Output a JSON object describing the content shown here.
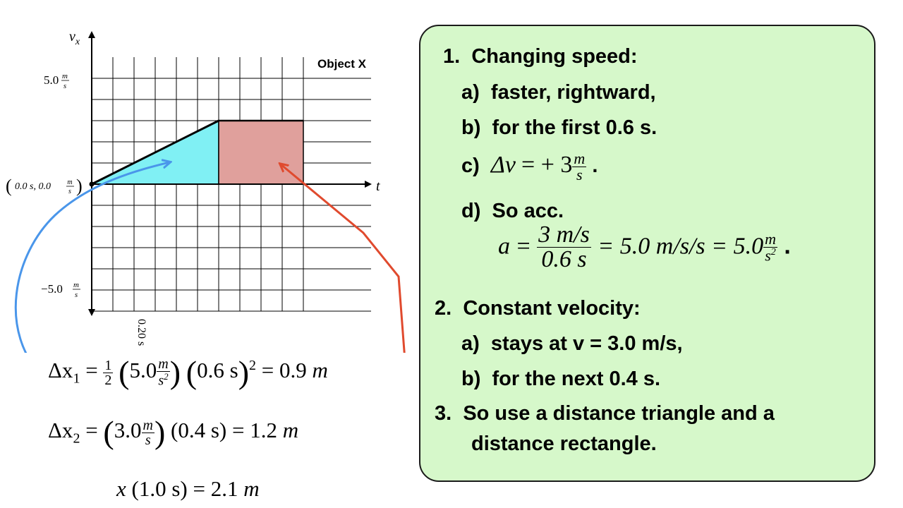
{
  "graph": {
    "y_axis_label": "v",
    "y_axis_subscript": "x",
    "x_axis_label": "t",
    "title": "Object X",
    "y_tick_top": "5.0",
    "y_tick_bottom": "−5.0",
    "unit_num": "m",
    "unit_den": "s",
    "x_tick": "0.20 s",
    "origin_label_left": "0.0 s, 0.0",
    "origin_label_paren_open": "(",
    "origin_label_paren_close": ")",
    "colors": {
      "triangle": "#80f0f4",
      "rectangle": "#e0a09c",
      "blue_arrow": "#4a96ea",
      "red_arrow": "#e04a2e"
    }
  },
  "chart_data": {
    "type": "area",
    "title": "Object X",
    "xlabel": "t",
    "ylabel": "v_x",
    "x": [
      0.0,
      0.6,
      1.0
    ],
    "series": [
      {
        "values": [
          0.0,
          3.0,
          3.0
        ]
      }
    ],
    "xlim": [
      0.0,
      1.3
    ],
    "ylim": [
      -6.0,
      7.0
    ],
    "x_grid_step": 0.1,
    "y_grid_step": 1.0,
    "grid": true
  },
  "equations": {
    "dx1": {
      "lhs": "Δx",
      "sub": "1",
      "eq": "=",
      "half_num": "1",
      "half_den": "2",
      "val": "5.0",
      "unit_num": "m",
      "unit_den": "s",
      "unit_den_exp": "2",
      "time": "0.6 s",
      "pow": "2",
      "result": "= 0.9",
      "result_unit": "m"
    },
    "dx2": {
      "lhs": "Δx",
      "sub": "2",
      "eq": "=",
      "val": "3.0",
      "unit_num": "m",
      "unit_den": "s",
      "time": "(0.4 s)",
      "result": "= 1.2",
      "result_unit": "m"
    },
    "x_total": {
      "lhs": "x",
      "arg": "(1.0 s)",
      "result": "= 2.1",
      "result_unit": "m"
    }
  },
  "panel": {
    "item1": {
      "num": "1.",
      "text": "Changing speed:"
    },
    "item1a": {
      "num": "a)",
      "text": "faster, rightward,"
    },
    "item1b": {
      "num": "b)",
      "text": "for the first 0.6 s."
    },
    "item1c": {
      "num": "c)",
      "lhs": "Δv",
      "rhs": "= + 3",
      "unit_num": "m",
      "unit_den": "s",
      "end": "."
    },
    "item1d": {
      "num": "d)",
      "text": "So acc."
    },
    "acc_eq": {
      "lhs": "a",
      "eq1": "=",
      "frac_num": "3 m/s",
      "frac_den": "0.6 s",
      "mid": "= 5.0 m/s/s = 5.0",
      "unit_num": "m",
      "unit_den": "s",
      "unit_exp": "2",
      "end": "."
    },
    "item2": {
      "num": "2.",
      "text": "Constant velocity:"
    },
    "item2a": {
      "num": "a)",
      "text": "stays at v = 3.0 m/s,"
    },
    "item2b": {
      "num": "b)",
      "text": "for the next 0.4 s."
    },
    "item3": {
      "num": "3.",
      "text1": "So use a distance triangle and a",
      "text2": "distance rectangle."
    }
  }
}
